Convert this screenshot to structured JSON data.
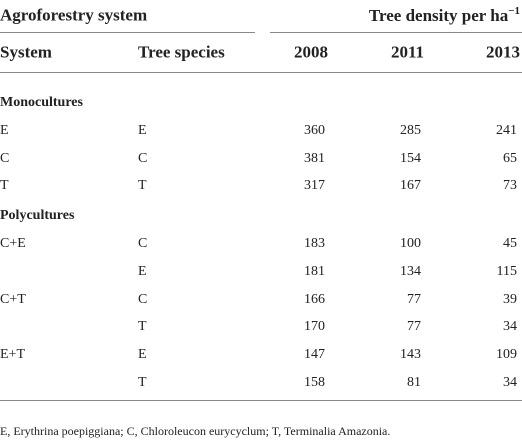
{
  "table": {
    "group_headers": [
      {
        "text": "Agroforestry system"
      },
      {
        "text": "Tree density per ha",
        "sup": "−1"
      }
    ],
    "columns": [
      "System",
      "Tree species",
      "2008",
      "2011",
      "2013"
    ],
    "sections": [
      {
        "title": "Monocultures",
        "rows": [
          [
            "E",
            "E",
            360,
            285,
            241
          ],
          [
            "C",
            "C",
            381,
            154,
            65
          ],
          [
            "T",
            "T",
            317,
            167,
            73
          ]
        ]
      },
      {
        "title": "Polycultures",
        "rows": [
          [
            "C+E",
            "C",
            183,
            100,
            45
          ],
          [
            null,
            "E",
            181,
            134,
            115
          ],
          [
            "C+T",
            "C",
            166,
            77,
            39
          ],
          [
            null,
            "T",
            170,
            77,
            34
          ],
          [
            "E+T",
            "E",
            147,
            143,
            109
          ],
          [
            null,
            "T",
            158,
            81,
            34
          ]
        ]
      }
    ]
  },
  "footnote": "E, Erythrina poepiggiana; C, Chloroleucon eurycyclum; T, Terminalia Amazonia."
}
